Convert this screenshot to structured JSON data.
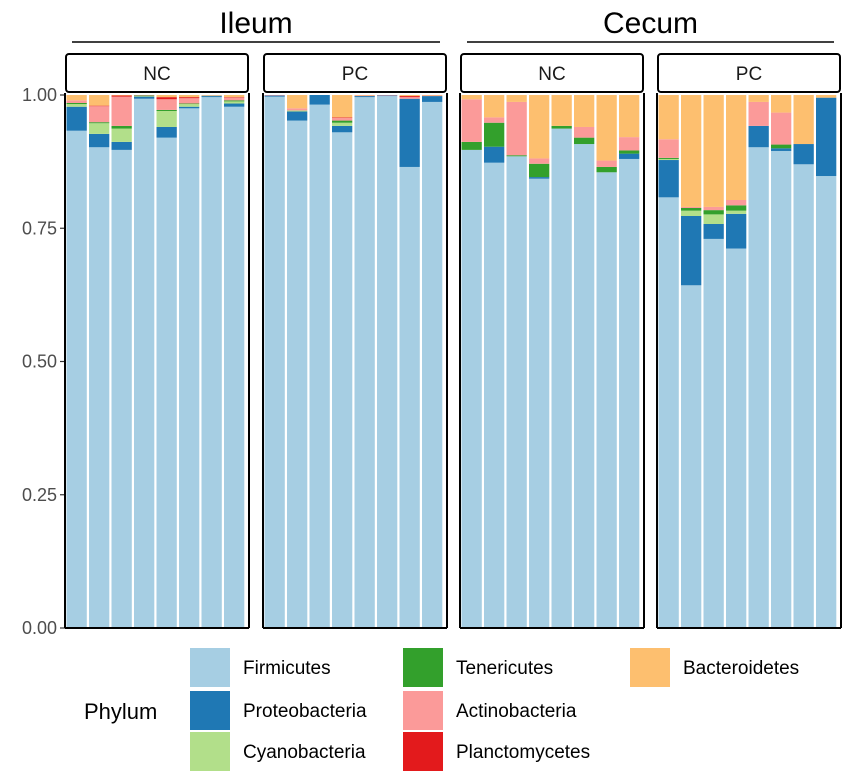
{
  "chart_data": {
    "type": "bar",
    "stacked": true,
    "legend_title": "Phylum",
    "legend_position": "bottom",
    "y_ticks": [
      "0.00",
      "0.25",
      "0.50",
      "0.75",
      "1.00"
    ],
    "ylim": [
      0,
      1.05
    ],
    "series": [
      {
        "name": "Firmicutes",
        "color": "#a6cee3"
      },
      {
        "name": "Proteobacteria",
        "color": "#1f78b4"
      },
      {
        "name": "Cyanobacteria",
        "color": "#b2df8a"
      },
      {
        "name": "Tenericutes",
        "color": "#33a02c"
      },
      {
        "name": "Actinobacteria",
        "color": "#fb9a99"
      },
      {
        "name": "Planctomycetes",
        "color": "#e31a1c"
      },
      {
        "name": "Bacteroidetes",
        "color": "#fdbf6f"
      }
    ],
    "groups": [
      {
        "title": "Ileum",
        "facets": [
          {
            "label": "NC",
            "samples": [
              [
                0.933,
                0.045,
                0.005,
                0.002,
                0.005,
                0.0,
                0.01
              ],
              [
                0.902,
                0.025,
                0.02,
                0.002,
                0.03,
                0.001,
                0.02
              ],
              [
                0.897,
                0.015,
                0.025,
                0.005,
                0.055,
                0.002,
                0.001
              ],
              [
                0.993,
                0.004,
                0.001,
                0.001,
                0.001,
                0.0,
                0.0
              ],
              [
                0.92,
                0.02,
                0.03,
                0.002,
                0.02,
                0.004,
                0.004
              ],
              [
                0.975,
                0.003,
                0.005,
                0.001,
                0.01,
                0.002,
                0.004
              ],
              [
                0.996,
                0.002,
                0.001,
                0.0,
                0.001,
                0.0,
                0.0
              ],
              [
                0.978,
                0.006,
                0.004,
                0.002,
                0.005,
                0.001,
                0.004
              ]
            ]
          },
          {
            "label": "PC",
            "samples": [
              [
                0.997,
                0.002,
                0.0,
                0.0,
                0.001,
                0.0,
                0.0
              ],
              [
                0.952,
                0.017,
                0.002,
                0.0,
                0.004,
                0.0,
                0.025
              ],
              [
                0.982,
                0.018,
                0.0,
                0.0,
                0.0,
                0.0,
                0.0
              ],
              [
                0.93,
                0.012,
                0.006,
                0.004,
                0.005,
                0.001,
                0.042
              ],
              [
                0.996,
                0.002,
                0.0,
                0.0,
                0.001,
                0.0,
                0.001
              ],
              [
                0.998,
                0.001,
                0.0,
                0.0,
                0.001,
                0.0,
                0.0
              ],
              [
                0.865,
                0.128,
                0.0,
                0.0,
                0.003,
                0.002,
                0.002
              ],
              [
                0.987,
                0.011,
                0.0,
                0.0,
                0.001,
                0.0,
                0.001
              ]
            ]
          }
        ]
      },
      {
        "title": "Cecum",
        "facets": [
          {
            "label": "NC",
            "samples": [
              [
                0.897,
                0.0,
                0.0,
                0.015,
                0.08,
                0.0,
                0.008
              ],
              [
                0.873,
                0.03,
                0.0,
                0.045,
                0.01,
                0.0,
                0.042
              ],
              [
                0.885,
                0.0,
                0.0,
                0.002,
                0.1,
                0.0,
                0.013
              ],
              [
                0.843,
                0.003,
                0.0,
                0.025,
                0.01,
                0.0,
                0.119
              ],
              [
                0.937,
                0.0,
                0.0,
                0.005,
                0.0,
                0.0,
                0.058
              ],
              [
                0.908,
                0.0,
                0.0,
                0.012,
                0.02,
                0.0,
                0.06
              ],
              [
                0.855,
                0.0,
                0.0,
                0.01,
                0.012,
                0.0,
                0.123
              ],
              [
                0.88,
                0.01,
                0.0,
                0.006,
                0.025,
                0.0,
                0.079
              ]
            ]
          },
          {
            "label": "PC",
            "samples": [
              [
                0.808,
                0.07,
                0.002,
                0.002,
                0.035,
                0.0,
                0.083
              ],
              [
                0.643,
                0.13,
                0.01,
                0.005,
                0.002,
                0.0,
                0.21
              ],
              [
                0.73,
                0.028,
                0.018,
                0.008,
                0.006,
                0.0,
                0.21
              ],
              [
                0.712,
                0.065,
                0.006,
                0.01,
                0.01,
                0.0,
                0.197
              ],
              [
                0.902,
                0.04,
                0.0,
                0.0,
                0.045,
                0.0,
                0.013
              ],
              [
                0.895,
                0.005,
                0.0,
                0.007,
                0.06,
                0.0,
                0.033
              ],
              [
                0.87,
                0.038,
                0.0,
                0.0,
                0.0,
                0.0,
                0.092
              ],
              [
                0.848,
                0.147,
                0.0,
                0.0,
                0.0,
                0.0,
                0.005
              ]
            ]
          }
        ]
      }
    ]
  }
}
